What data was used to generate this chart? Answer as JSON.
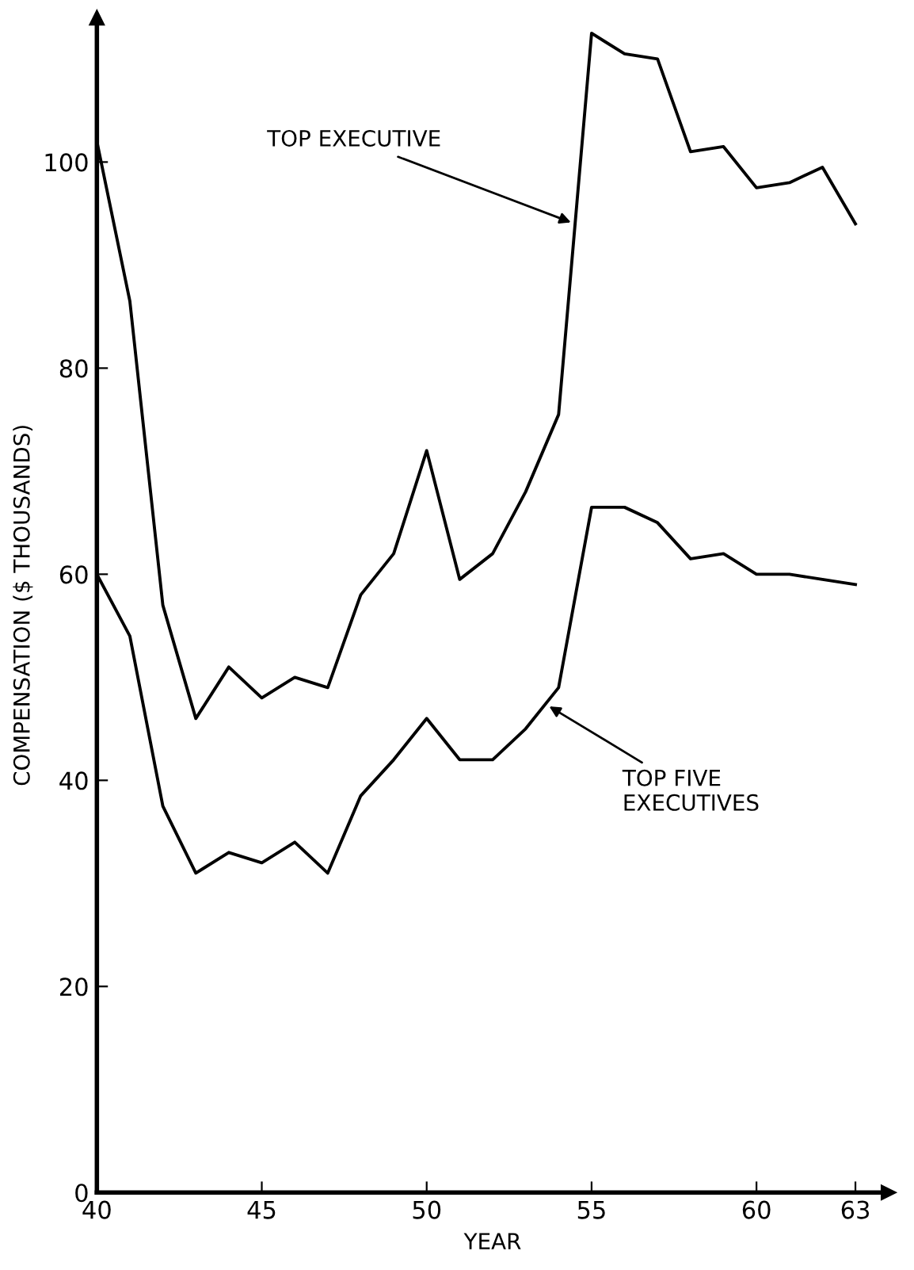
{
  "chart_data": {
    "type": "line",
    "xlabel": "YEAR",
    "ylabel": "COMPENSATION ($ THOUSANDS)",
    "x": [
      40,
      41,
      42,
      43,
      44,
      45,
      46,
      47,
      48,
      49,
      50,
      51,
      52,
      53,
      54,
      55,
      56,
      57,
      58,
      59,
      60,
      61,
      62,
      63
    ],
    "series": [
      {
        "color": "#000000",
        "values": [
          102,
          86.5,
          57,
          46,
          51,
          48,
          50,
          49,
          58,
          62,
          72,
          59.5,
          62,
          68,
          75.5,
          112.5,
          110.5,
          110,
          101,
          101.5,
          97.5,
          98,
          99.5,
          94
        ]
      },
      {
        "color": "#000000",
        "values": [
          60,
          54,
          37.5,
          31,
          33,
          32,
          34,
          31,
          38.5,
          42,
          46,
          42,
          42,
          45,
          49,
          66.5,
          66.5,
          65,
          61.5,
          62,
          60,
          60,
          59.5,
          59
        ]
      }
    ],
    "xlim": [
      40,
      64
    ],
    "ylim": [
      0,
      114
    ],
    "xticks": [
      40,
      45,
      50,
      55,
      60,
      63
    ],
    "yticks": [
      0,
      20,
      40,
      60,
      80,
      100
    ],
    "grid": false,
    "legend": false,
    "marker": "none",
    "line_style": "solid",
    "annotations": [
      {
        "text": "TOP EXECUTIVE",
        "x": 54.5,
        "y": 94
      },
      {
        "text": "TOP FIVE\nEXECUTIVES",
        "x": 53.6,
        "y": 47.4
      }
    ]
  }
}
